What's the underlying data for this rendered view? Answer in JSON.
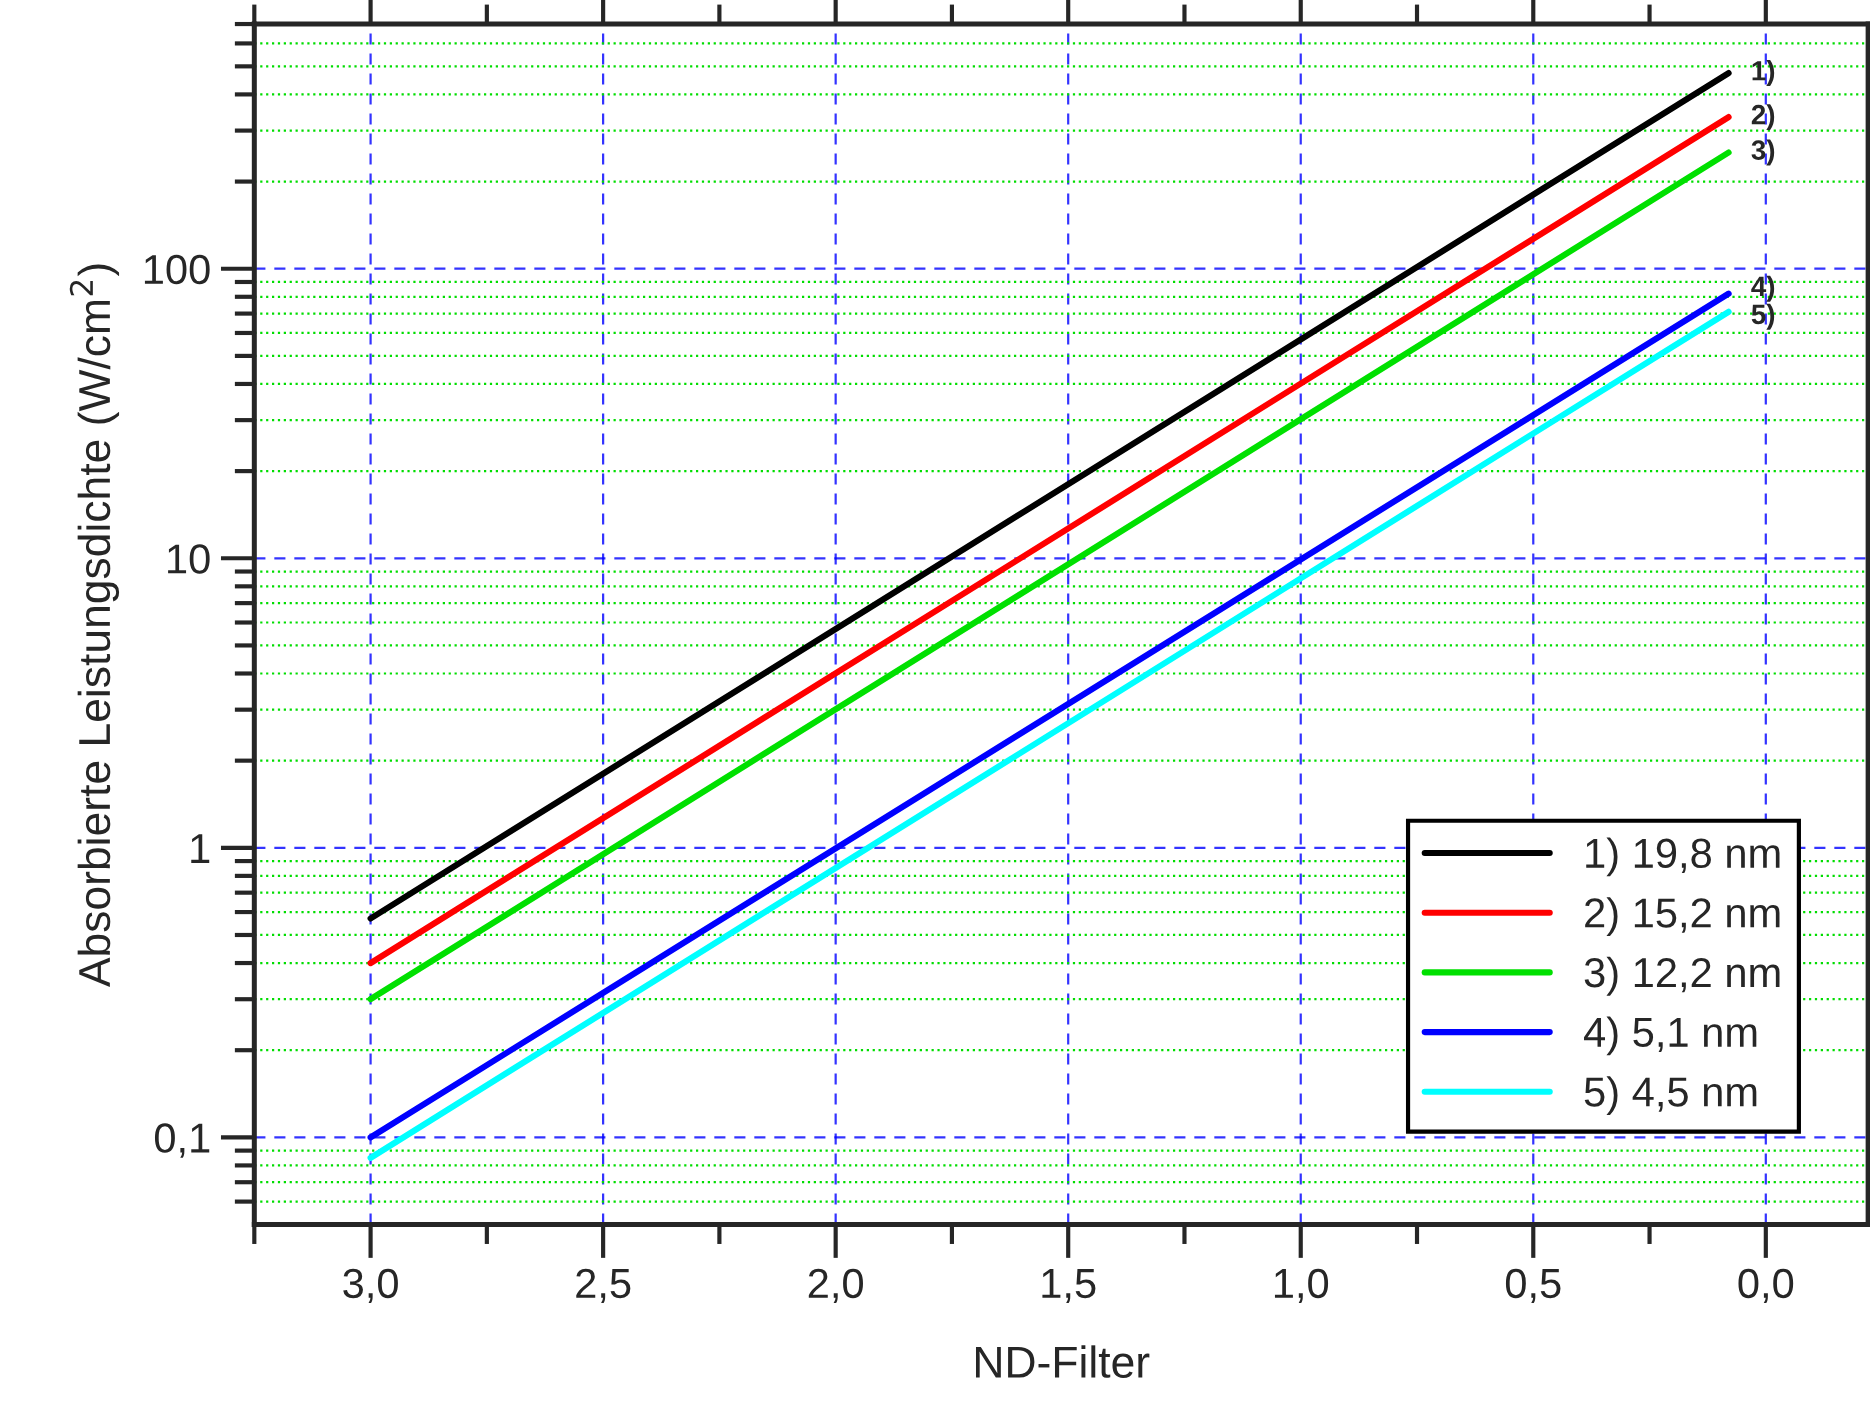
{
  "chart_data": {
    "type": "line",
    "xlabel": "ND-Filter",
    "ylabel": "Absorbierte Leistungsdichte (W/cm$^{2}$)",
    "x": [
      3.0,
      0.08
    ],
    "series": [
      {
        "name": "1) 19,8 nm",
        "color": "#000000",
        "values": [
          0.57,
          474
        ]
      },
      {
        "name": "2) 15,2 nm",
        "color": "#ff0000",
        "values": [
          0.4,
          334
        ]
      },
      {
        "name": "3) 12,2 nm",
        "color": "#00e000",
        "values": [
          0.3,
          252
        ]
      },
      {
        "name": "4) 5,1 nm",
        "color": "#0000ff",
        "values": [
          0.1,
          82
        ]
      },
      {
        "name": "5) 4,5 nm",
        "color": "#00ffff",
        "values": [
          0.085,
          71
        ]
      }
    ],
    "annotations": [
      "1)",
      "2)",
      "3)",
      "4)",
      "5)"
    ],
    "log": "y",
    "xlim": [
      3.25,
      -0.22
    ],
    "ylim": [
      0.05,
      700
    ],
    "xticks": [
      {
        "value": 3.25,
        "label": null
      },
      {
        "value": 3.0,
        "label": "3,0"
      },
      {
        "value": 2.75,
        "label": null
      },
      {
        "value": 2.5,
        "label": "2,5"
      },
      {
        "value": 2.25,
        "label": null
      },
      {
        "value": 2.0,
        "label": "2,0"
      },
      {
        "value": 1.75,
        "label": null
      },
      {
        "value": 1.5,
        "label": "1,5"
      },
      {
        "value": 1.25,
        "label": null
      },
      {
        "value": 1.0,
        "label": "1,0"
      },
      {
        "value": 0.75,
        "label": null
      },
      {
        "value": 0.5,
        "label": "0,5"
      },
      {
        "value": 0.25,
        "label": null
      },
      {
        "value": 0.0,
        "label": "0,0"
      }
    ],
    "yticks": [
      {
        "value": 0.06,
        "label": null
      },
      {
        "value": 0.07,
        "label": null
      },
      {
        "value": 0.08,
        "label": null
      },
      {
        "value": 0.09,
        "label": null
      },
      {
        "value": 0.1,
        "label": "0,1"
      },
      {
        "value": 0.2,
        "label": null
      },
      {
        "value": 0.3,
        "label": null
      },
      {
        "value": 0.4,
        "label": null
      },
      {
        "value": 0.5,
        "label": null
      },
      {
        "value": 0.6,
        "label": null
      },
      {
        "value": 0.7,
        "label": null
      },
      {
        "value": 0.8,
        "label": null
      },
      {
        "value": 0.9,
        "label": null
      },
      1,
      {
        "value": 2,
        "label": null
      },
      {
        "value": 3,
        "label": null
      },
      {
        "value": 4,
        "label": null
      },
      {
        "value": 5,
        "label": null
      },
      {
        "value": 6,
        "label": null
      },
      {
        "value": 7,
        "label": null
      },
      {
        "value": 8,
        "label": null
      },
      {
        "value": 9,
        "label": null
      },
      10,
      {
        "value": 20,
        "label": null
      },
      {
        "value": 30,
        "label": null
      },
      {
        "value": 40,
        "label": null
      },
      {
        "value": 50,
        "label": null
      },
      {
        "value": 60,
        "label": null
      },
      {
        "value": 70,
        "label": null
      },
      {
        "value": 80,
        "label": null
      },
      {
        "value": 90,
        "label": null
      },
      100,
      {
        "value": 200,
        "label": null
      },
      {
        "value": 300,
        "label": null
      },
      {
        "value": 400,
        "label": null
      },
      {
        "value": 500,
        "label": null
      },
      {
        "value": 600,
        "label": null
      },
      {
        "value": 700,
        "label": null
      }
    ],
    "grid": true,
    "legend": "bottom right",
    "line_style": "solid",
    "marker": "none"
  }
}
